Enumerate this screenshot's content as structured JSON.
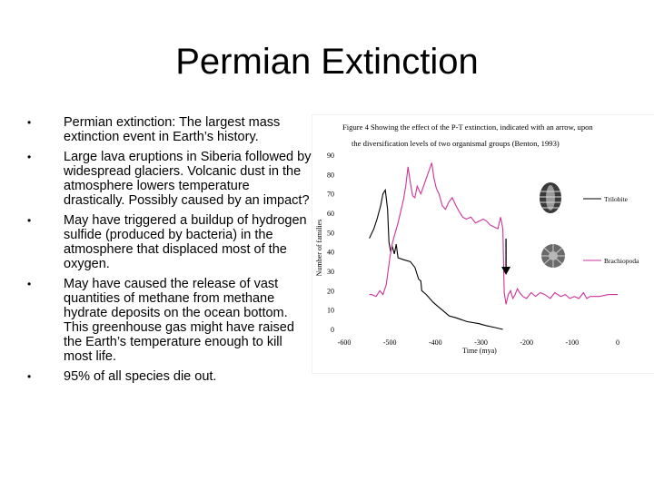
{
  "slide": {
    "title": "Permian Extinction",
    "bullets": [
      "Permian extinction: The largest mass extinction event in Earth’s history.",
      "Large lava eruptions in Siberia followed by widespread glaciers. Volcanic dust in the atmosphere lowers temperature drastically. Possibly caused by an impact?",
      "May have triggered a buildup of hydrogen sulfide (produced by bacteria) in the atmosphere that displaced most of the oxygen.",
      "May have caused the release of vast quantities of methane from methane hydrate deposits on the ocean bottom. This greenhouse gas might have raised the Earth’s temperature enough to kill most life.",
      "95% of all species die out."
    ],
    "bullet_glyph": "•"
  },
  "chart_data": {
    "type": "line",
    "title": "Figure 4 Showing the effect of the P-T extinction, indicated with an arrow, upon the diversification levels of two organismal groups (Benton, 1993)",
    "title_lines": [
      "Figure 4 Showing the effect of the P-T extinction, indicated with an arrow, upon",
      "the diversification levels of two organismal groups (Benton, 1993)"
    ],
    "xlabel": "Time (mya)",
    "ylabel": "Number of families",
    "xlim": [
      -600,
      0
    ],
    "ylim": [
      0,
      90
    ],
    "xticks": [
      -600,
      -500,
      -400,
      -300,
      -200,
      -100,
      0
    ],
    "yticks": [
      0,
      10,
      20,
      30,
      40,
      50,
      60,
      70,
      80,
      90
    ],
    "grid": false,
    "legend_position": "right",
    "extinction_arrow_x": -245,
    "series": [
      {
        "name": "Trilobite",
        "color": "#000000",
        "points": [
          [
            -545,
            47
          ],
          [
            -535,
            52
          ],
          [
            -528,
            57
          ],
          [
            -520,
            64
          ],
          [
            -515,
            70
          ],
          [
            -510,
            72
          ],
          [
            -505,
            62
          ],
          [
            -502,
            45
          ],
          [
            -498,
            40
          ],
          [
            -495,
            43
          ],
          [
            -490,
            39
          ],
          [
            -486,
            44
          ],
          [
            -482,
            37
          ],
          [
            -470,
            36
          ],
          [
            -455,
            35
          ],
          [
            -445,
            32
          ],
          [
            -437,
            26
          ],
          [
            -432,
            25
          ],
          [
            -430,
            20
          ],
          [
            -425,
            19
          ],
          [
            -420,
            18
          ],
          [
            -405,
            14
          ],
          [
            -395,
            12
          ],
          [
            -385,
            10
          ],
          [
            -370,
            7
          ],
          [
            -355,
            6
          ],
          [
            -330,
            4
          ],
          [
            -305,
            3
          ],
          [
            -290,
            2
          ],
          [
            -270,
            1
          ],
          [
            -252,
            0
          ]
        ]
      },
      {
        "name": "Brachiopoda",
        "color": "#cc3399",
        "points": [
          [
            -545,
            18
          ],
          [
            -540,
            18
          ],
          [
            -530,
            17
          ],
          [
            -522,
            20
          ],
          [
            -515,
            18
          ],
          [
            -508,
            23
          ],
          [
            -500,
            37
          ],
          [
            -494,
            45
          ],
          [
            -488,
            50
          ],
          [
            -482,
            55
          ],
          [
            -476,
            61
          ],
          [
            -470,
            67
          ],
          [
            -465,
            74
          ],
          [
            -460,
            84
          ],
          [
            -455,
            76
          ],
          [
            -450,
            69
          ],
          [
            -445,
            68
          ],
          [
            -440,
            74
          ],
          [
            -432,
            70
          ],
          [
            -426,
            74
          ],
          [
            -420,
            78
          ],
          [
            -414,
            82
          ],
          [
            -408,
            86
          ],
          [
            -403,
            78
          ],
          [
            -398,
            73
          ],
          [
            -392,
            70
          ],
          [
            -385,
            64
          ],
          [
            -378,
            62
          ],
          [
            -370,
            66
          ],
          [
            -363,
            68
          ],
          [
            -355,
            64
          ],
          [
            -348,
            61
          ],
          [
            -340,
            58
          ],
          [
            -332,
            57
          ],
          [
            -322,
            58
          ],
          [
            -312,
            55
          ],
          [
            -303,
            56
          ],
          [
            -295,
            57
          ],
          [
            -288,
            56
          ],
          [
            -280,
            54
          ],
          [
            -272,
            53
          ],
          [
            -263,
            52
          ],
          [
            -257,
            58
          ],
          [
            -252,
            52
          ],
          [
            -249,
            19
          ],
          [
            -245,
            13
          ],
          [
            -240,
            18
          ],
          [
            -235,
            20
          ],
          [
            -230,
            16
          ],
          [
            -225,
            18
          ],
          [
            -220,
            21
          ],
          [
            -215,
            19
          ],
          [
            -208,
            17
          ],
          [
            -200,
            16
          ],
          [
            -190,
            19
          ],
          [
            -180,
            17
          ],
          [
            -170,
            19
          ],
          [
            -160,
            18
          ],
          [
            -148,
            16
          ],
          [
            -138,
            19
          ],
          [
            -125,
            17
          ],
          [
            -115,
            18
          ],
          [
            -105,
            16
          ],
          [
            -95,
            17
          ],
          [
            -85,
            16
          ],
          [
            -75,
            19
          ],
          [
            -68,
            16
          ],
          [
            -60,
            17
          ],
          [
            -40,
            17
          ],
          [
            -20,
            18
          ],
          [
            0,
            18
          ]
        ]
      }
    ]
  }
}
